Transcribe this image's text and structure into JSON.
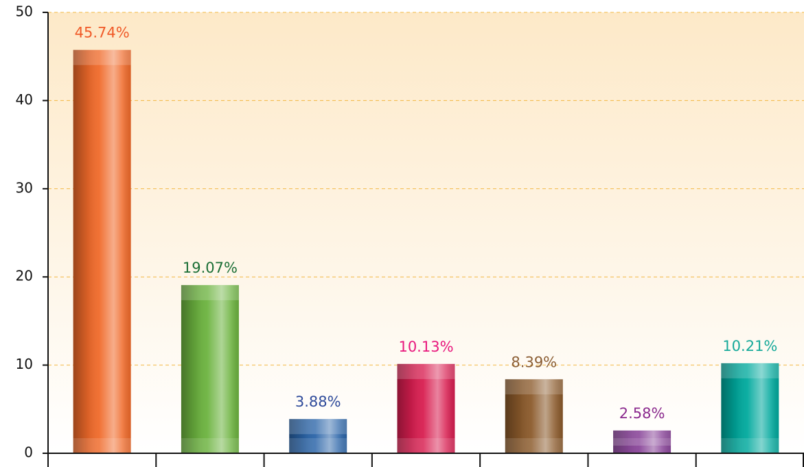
{
  "chart_data": {
    "type": "bar",
    "categories": [
      null,
      null,
      null,
      null,
      null,
      null,
      null
    ],
    "values": [
      45.74,
      19.07,
      3.88,
      10.13,
      8.39,
      2.58,
      10.21
    ],
    "value_labels": [
      "45.74%",
      "19.07%",
      "3.88%",
      "10.13%",
      "8.39%",
      "2.58%",
      "10.21%"
    ],
    "colors": [
      "#f06a2a",
      "#6cb33f",
      "#2a64a8",
      "#d81e50",
      "#8b5a2b",
      "#7a2d8c",
      "#00a99d"
    ],
    "label_colors": [
      "#f05a28",
      "#1a6e35",
      "#2e4a9a",
      "#e8177d",
      "#8b5e34",
      "#8b2a8e",
      "#16a99a"
    ],
    "ylim": [
      0,
      50
    ],
    "yticks": [
      0,
      10,
      20,
      30,
      40,
      50
    ],
    "grid": true
  }
}
